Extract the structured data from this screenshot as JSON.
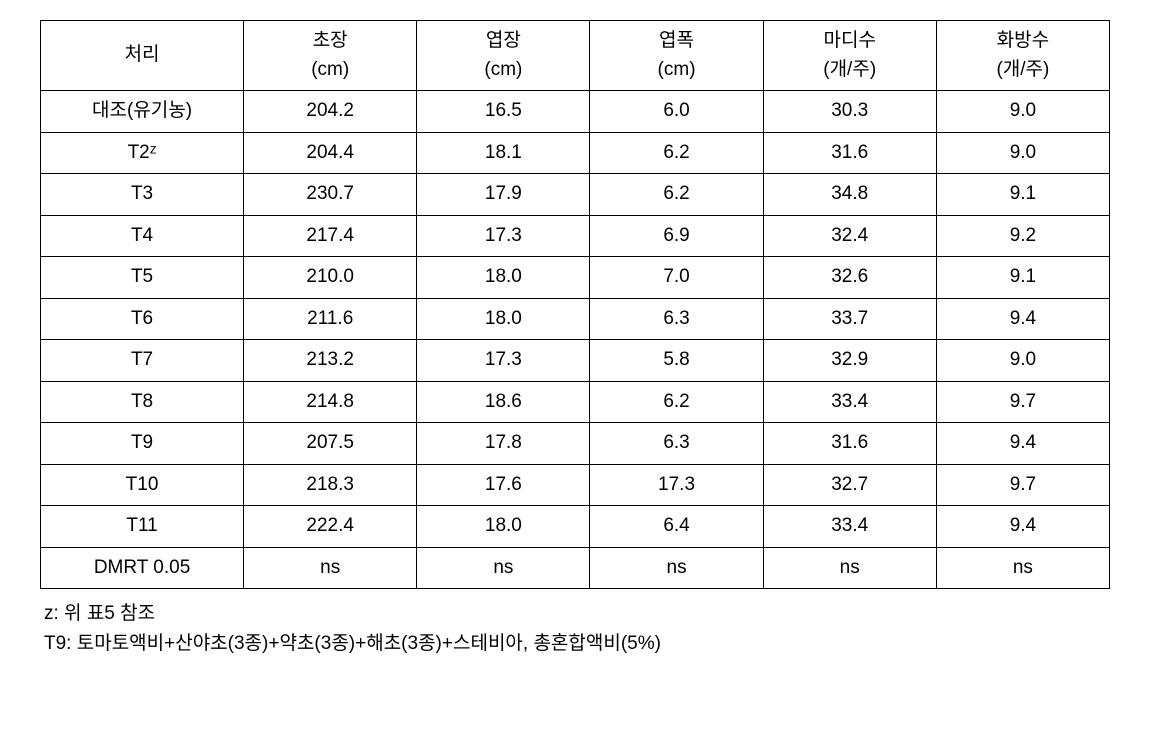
{
  "table": {
    "columns": [
      {
        "label": "처리",
        "unit": ""
      },
      {
        "label": "초장",
        "unit": "(cm)"
      },
      {
        "label": "엽장",
        "unit": "(cm)"
      },
      {
        "label": "엽폭",
        "unit": "(cm)"
      },
      {
        "label": "마디수",
        "unit": "(개/주)"
      },
      {
        "label": "화방수",
        "unit": "(개/주)"
      }
    ],
    "rows": [
      {
        "treatment": "대조(유기농)",
        "c1": "204.2",
        "c2": "16.5",
        "c3": "6.0",
        "c4": "30.3",
        "c5": "9.0"
      },
      {
        "treatment": "T2ᶻ",
        "c1": "204.4",
        "c2": "18.1",
        "c3": "6.2",
        "c4": "31.6",
        "c5": "9.0"
      },
      {
        "treatment": "T3",
        "c1": "230.7",
        "c2": "17.9",
        "c3": "6.2",
        "c4": "34.8",
        "c5": "9.1"
      },
      {
        "treatment": "T4",
        "c1": "217.4",
        "c2": "17.3",
        "c3": "6.9",
        "c4": "32.4",
        "c5": "9.2"
      },
      {
        "treatment": "T5",
        "c1": "210.0",
        "c2": "18.0",
        "c3": "7.0",
        "c4": "32.6",
        "c5": "9.1"
      },
      {
        "treatment": "T6",
        "c1": "211.6",
        "c2": "18.0",
        "c3": "6.3",
        "c4": "33.7",
        "c5": "9.4"
      },
      {
        "treatment": "T7",
        "c1": "213.2",
        "c2": "17.3",
        "c3": "5.8",
        "c4": "32.9",
        "c5": "9.0"
      },
      {
        "treatment": "T8",
        "c1": "214.8",
        "c2": "18.6",
        "c3": "6.2",
        "c4": "33.4",
        "c5": "9.7"
      },
      {
        "treatment": "T9",
        "c1": "207.5",
        "c2": "17.8",
        "c3": "6.3",
        "c4": "31.6",
        "c5": "9.4"
      },
      {
        "treatment": "T10",
        "c1": "218.3",
        "c2": "17.6",
        "c3": "17.3",
        "c4": "32.7",
        "c5": "9.7"
      },
      {
        "treatment": "T11",
        "c1": "222.4",
        "c2": "18.0",
        "c3": "6.4",
        "c4": "33.4",
        "c5": "9.4"
      },
      {
        "treatment": "DMRT 0.05",
        "c1": "ns",
        "c2": "ns",
        "c3": "ns",
        "c4": "ns",
        "c5": "ns"
      }
    ],
    "border_color": "#000000",
    "background_color": "#ffffff",
    "text_color": "#000000",
    "font_size": 19,
    "header_font_size": 19
  },
  "footnotes": {
    "line1": "z: 위 표5 참조",
    "line2": "T9: 토마토액비+산야초(3종)+약초(3종)+해초(3종)+스테비아, 총혼합액비(5%)"
  }
}
